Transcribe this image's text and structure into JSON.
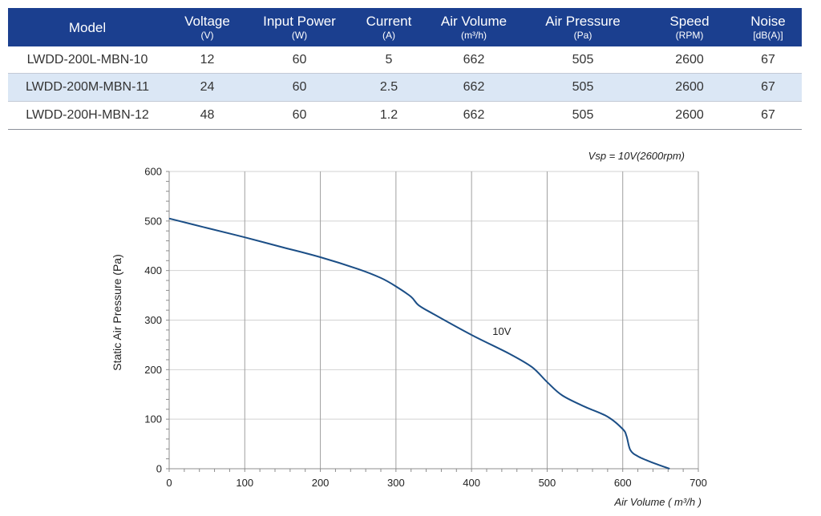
{
  "table": {
    "columns": [
      {
        "label": "Model",
        "unit": ""
      },
      {
        "label": "Voltage",
        "unit": "(V)"
      },
      {
        "label": "Input Power",
        "unit": "(W)"
      },
      {
        "label": "Current",
        "unit": "(A)"
      },
      {
        "label": "Air Volume",
        "unit": "(m³/h)"
      },
      {
        "label": "Air Pressure",
        "unit": "(Pa)"
      },
      {
        "label": "Speed",
        "unit": "(RPM)"
      },
      {
        "label": "Noise",
        "unit": "[dB(A)]"
      }
    ],
    "rows": [
      [
        "LWDD-200L-MBN-10",
        "12",
        "60",
        "5",
        "662",
        "505",
        "2600",
        "67"
      ],
      [
        "LWDD-200M-MBN-11",
        "24",
        "60",
        "2.5",
        "662",
        "505",
        "2600",
        "67"
      ],
      [
        "LWDD-200H-MBN-12",
        "48",
        "60",
        "1.2",
        "662",
        "505",
        "2600",
        "67"
      ]
    ],
    "colors": {
      "header_bg": "#1b3f8f",
      "header_text": "#ffffff",
      "alt_row_bg": "#dbe7f5"
    }
  },
  "chart_data": {
    "type": "line",
    "xlabel": "Air Volume ( m³/h )",
    "ylabel": "Static Air Pressure  (Pa)",
    "annotation": "Vsp = 10V(2600rpm)",
    "xlim": [
      0,
      700
    ],
    "ylim": [
      0,
      600
    ],
    "xticks": [
      0,
      100,
      200,
      300,
      400,
      500,
      600,
      700
    ],
    "yticks": [
      0,
      100,
      200,
      300,
      400,
      500,
      600
    ],
    "grid": {
      "vertical": true,
      "horizontal": true
    },
    "series": [
      {
        "name": "10V",
        "color": "#1b4e86",
        "x": [
          0,
          50,
          100,
          150,
          200,
          250,
          280,
          300,
          320,
          330,
          350,
          400,
          450,
          480,
          500,
          520,
          550,
          580,
          600,
          605,
          610,
          620,
          640,
          662
        ],
        "y": [
          505,
          486,
          467,
          447,
          427,
          403,
          385,
          368,
          347,
          330,
          312,
          270,
          232,
          205,
          175,
          148,
          125,
          105,
          80,
          66,
          38,
          25,
          12,
          0
        ]
      }
    ]
  }
}
